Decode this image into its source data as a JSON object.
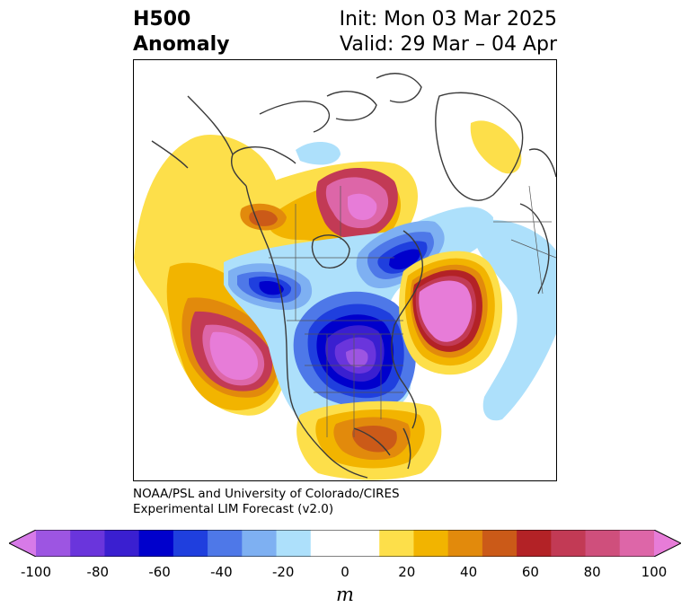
{
  "title": {
    "left_line1": "H500",
    "left_line2": "Anomaly",
    "right_line1": "Init: Mon 03 Mar 2025",
    "right_line2": "Valid: 29 Mar – 04 Apr"
  },
  "credit": {
    "line1": "NOAA/PSL and University of Colorado/CIRES",
    "line2": "Experimental LIM Forecast (v2.0)"
  },
  "colorbar": {
    "ticks": [
      "-100",
      "-80",
      "-60",
      "-40",
      "-20",
      "0",
      "20",
      "40",
      "60",
      "80",
      "100"
    ],
    "unit": "m",
    "colors": [
      "#d77ae8",
      "#9d55e2",
      "#6a35dc",
      "#3a1fd0",
      "#0000cc",
      "#1f3fde",
      "#4e78e8",
      "#7eb0f2",
      "#ade0fb",
      "#ffffff",
      "#ffffff",
      "#fddf4a",
      "#f2b400",
      "#e28a0c",
      "#cb5a18",
      "#b32226",
      "#c23a55",
      "#cf4f7c",
      "#dd66a8",
      "#e77cd8"
    ]
  },
  "map": {
    "anomalies": [
      {
        "name": "north-pacific-ridge",
        "sign": "positive",
        "peak_m": 100
      },
      {
        "name": "west-atlantic-ridge",
        "sign": "positive",
        "peak_m": 100
      },
      {
        "name": "eastern-north-america-trough",
        "sign": "negative",
        "peak_m": -80
      },
      {
        "name": "arctic-ridge",
        "sign": "positive",
        "peak_m": 90
      },
      {
        "name": "aleutian-trough",
        "sign": "negative",
        "peak_m": -60
      },
      {
        "name": "greenland-trough",
        "sign": "negative",
        "peak_m": -60
      },
      {
        "name": "gulf-of-mexico-ridge",
        "sign": "positive",
        "peak_m": 50
      }
    ]
  }
}
